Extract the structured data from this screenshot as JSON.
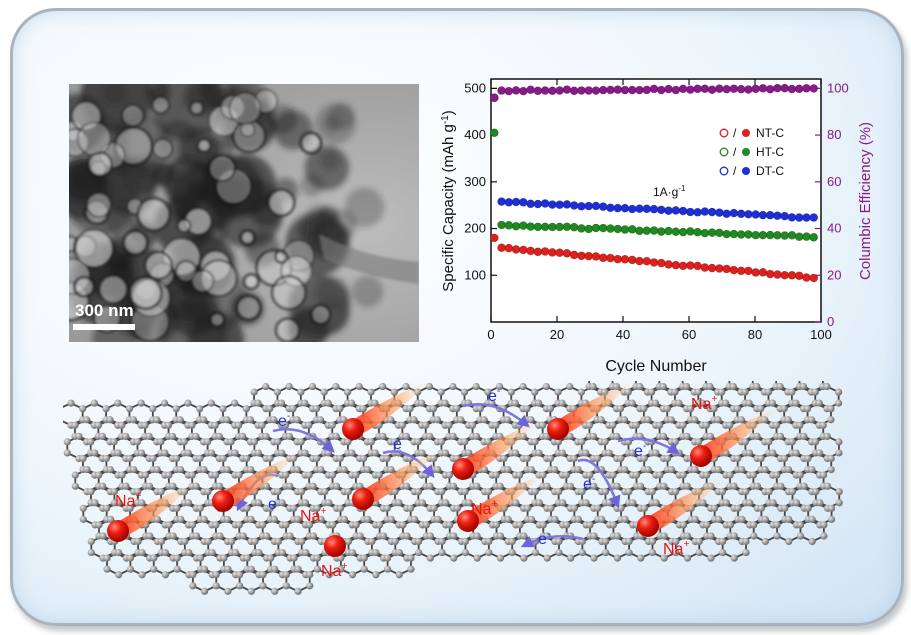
{
  "tem": {
    "scale_label": "300 nm"
  },
  "chart_data": {
    "type": "scatter",
    "xlabel": "Cycle Number",
    "ylabel": "Specific Capacity (mAh g",
    "ylabel_sup": "-1",
    "ylabel_close": ")",
    "y2label": "Columbic Efficiency (%)",
    "xlim": [
      0,
      100
    ],
    "ylim": [
      0,
      520
    ],
    "y2lim": [
      0,
      104
    ],
    "xticks": [
      "0",
      "20",
      "40",
      "60",
      "80",
      "100"
    ],
    "yticks": [
      "100",
      "200",
      "300",
      "400",
      "500"
    ],
    "y2ticks": [
      "0",
      "20",
      "40",
      "60",
      "80",
      "100"
    ],
    "annotation": "1A·g",
    "annotation_sup": "-1",
    "legend_placement": "top-right",
    "legend": [
      {
        "name": "NT-C",
        "color": "#e0201c"
      },
      {
        "name": "HT-C",
        "color": "#1f8a1f"
      },
      {
        "name": "DT-C",
        "color": "#1f2fd8"
      }
    ],
    "series": [
      {
        "name": "NT-C",
        "color": "#e0201c",
        "first": 180,
        "start": 160,
        "end": 93
      },
      {
        "name": "HT-C",
        "color": "#1f8a1f",
        "first": 405,
        "start": 208,
        "end": 182
      },
      {
        "name": "DT-C",
        "color": "#1f2fd8",
        "first": 480,
        "start": 258,
        "end": 222
      },
      {
        "name": "Columbic Efficiency",
        "color": "#8a1a8a",
        "axis": "right",
        "first": 96,
        "start": 99,
        "end": 100
      }
    ]
  },
  "scene": {
    "na_label": "Na",
    "na_sup": "+",
    "e_label": "e",
    "e_sup": "-"
  },
  "colors": {
    "na_ion": "#e8130f",
    "electron_arrow": "#7d75e0",
    "atom": "#9a9a9a",
    "bond": "#444444"
  }
}
